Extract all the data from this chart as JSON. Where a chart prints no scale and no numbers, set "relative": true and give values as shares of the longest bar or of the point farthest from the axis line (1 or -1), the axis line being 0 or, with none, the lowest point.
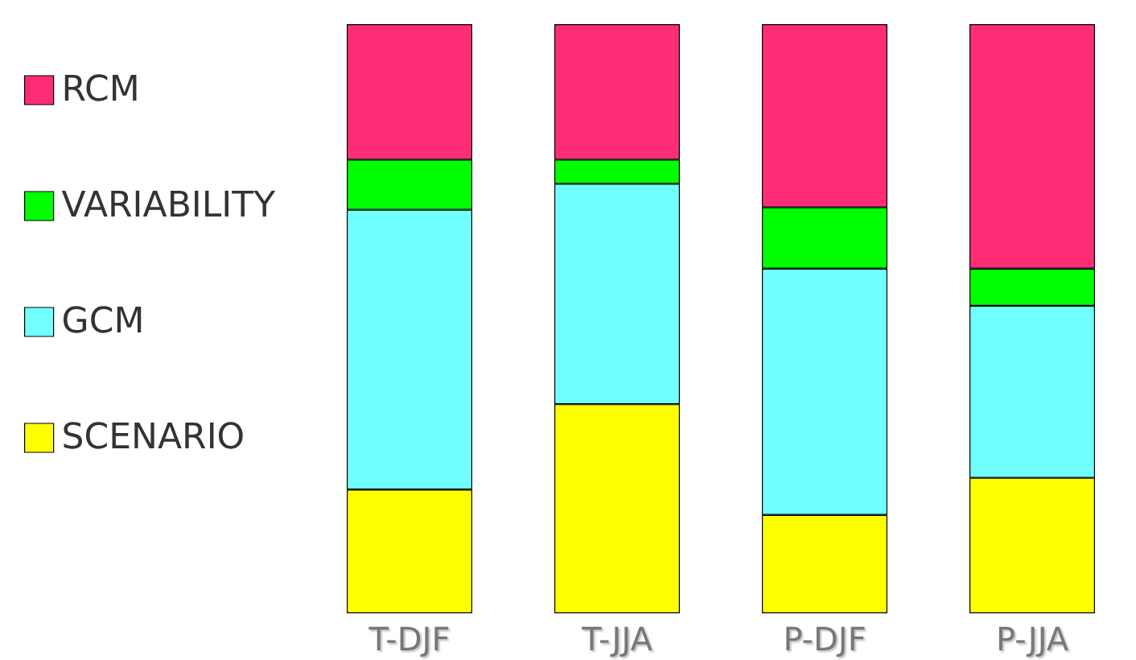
{
  "chart_data": {
    "type": "bar",
    "stacked": true,
    "relative": true,
    "categories": [
      "T-DJF",
      "T-JJA",
      "P-DJF",
      "P-JJA"
    ],
    "series": [
      {
        "name": "SCENARIO",
        "color": "#ffff00",
        "values": [
          0.21,
          0.355,
          0.167,
          0.23
        ]
      },
      {
        "name": "GCM",
        "color": "#72ffff",
        "values": [
          0.475,
          0.374,
          0.418,
          0.292
        ]
      },
      {
        "name": "VARIABILITY",
        "color": "#00ff00",
        "values": [
          0.085,
          0.041,
          0.104,
          0.063
        ]
      },
      {
        "name": "RCM",
        "color": "#ff2d78",
        "values": [
          0.23,
          0.23,
          0.311,
          0.415
        ]
      }
    ],
    "legend": "left"
  }
}
